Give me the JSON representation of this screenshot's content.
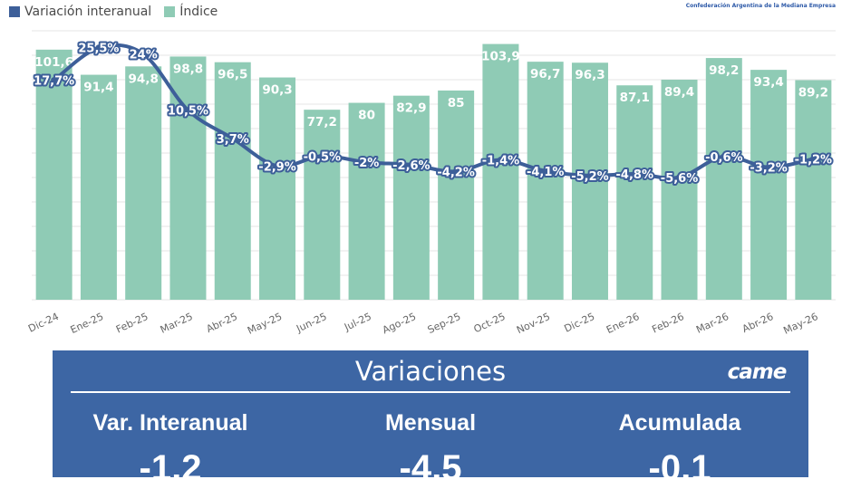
{
  "legend": {
    "line_label": "Variación interanual",
    "bar_label": "Índice"
  },
  "brand": {
    "subtitle": "Confederación Argentina de la Mediana Empresa",
    "logo_text": "came"
  },
  "colors": {
    "bar": "#8fcbb5",
    "line": "#3d5f99",
    "panel": "#3d66a4",
    "grid": "#e6e6e6"
  },
  "chart_data": {
    "type": "bar",
    "categories": [
      "Dic-24",
      "Ene-25",
      "Feb-25",
      "Mar-25",
      "Abr-25",
      "May-25",
      "Jun-25",
      "Jul-25",
      "Ago-25",
      "Sep-25",
      "Oct-25",
      "Nov-25",
      "Dic-25",
      "Ene-26",
      "Feb-26",
      "Mar-26",
      "Abr-26",
      "May-26"
    ],
    "series": [
      {
        "name": "Índice",
        "type": "bar",
        "values": [
          101.6,
          91.4,
          94.8,
          98.8,
          96.5,
          90.3,
          77.2,
          80,
          82.9,
          85,
          103.9,
          96.7,
          96.3,
          87.1,
          89.4,
          98.2,
          93.4,
          89.2
        ],
        "labels": [
          "101,6",
          "91,4",
          "94,8",
          "98,8",
          "96,5",
          "90,3",
          "77,2",
          "80",
          "82,9",
          "85",
          "103,9",
          "96,7",
          "96,3",
          "87,1",
          "89,4",
          "98,2",
          "93,4",
          "89,2"
        ]
      },
      {
        "name": "Variación interanual",
        "type": "line",
        "values": [
          17.7,
          25.5,
          24,
          10.5,
          3.7,
          -2.9,
          -0.5,
          -2,
          -2.6,
          -4.2,
          -1.4,
          -4.1,
          -5.2,
          -4.8,
          -5.6,
          -0.6,
          -3.2,
          -1.2
        ],
        "labels": [
          "17,7%",
          "25,5%",
          "24%",
          "10,5%",
          "3,7%",
          "-2,9%",
          "-0,5%",
          "-2%",
          "-2,6%",
          "-4,2%",
          "-1,4%",
          "-4,1%",
          "-5,2%",
          "-4,8%",
          "-5,6%",
          "-0,6%",
          "-3,2%",
          "-1,2%"
        ]
      }
    ],
    "bar_axis_range": [
      0,
      110
    ],
    "line_axis_range": [
      -35,
      30
    ],
    "grid": true,
    "legend": "top-left"
  },
  "panel": {
    "title": "Variaciones",
    "metrics": [
      {
        "label": "Var. Interanual",
        "value": "-1,2"
      },
      {
        "label": "Mensual",
        "value": "-4,5"
      },
      {
        "label": "Acumulada",
        "value": "-0,1"
      }
    ]
  }
}
